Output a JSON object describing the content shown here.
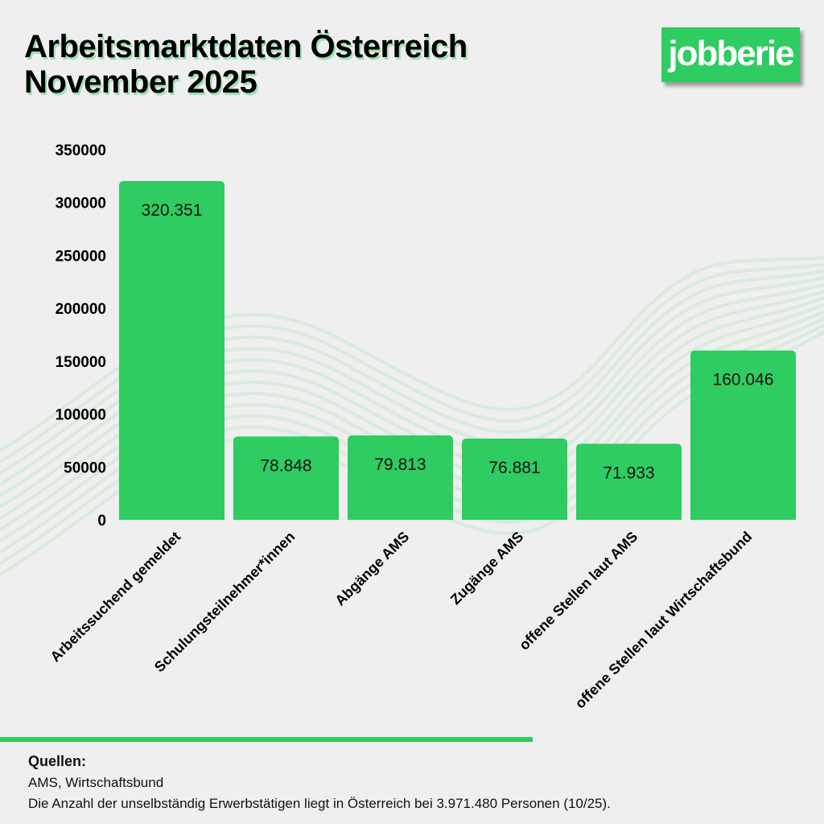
{
  "title_line1": "Arbeitsmarktdaten Österreich",
  "title_line2": "November 2025",
  "logo_text": "jobberie",
  "colors": {
    "bar": "#2ecc61",
    "background": "#efefef",
    "waves": "#cfe9d6"
  },
  "chart_data": {
    "type": "bar",
    "title": "Arbeitsmarktdaten Österreich November 2025",
    "categories": [
      "Arbeitssuchend gemeldet",
      "Schulungsteilnehmer*innen",
      "Abgänge AMS",
      "Zugänge AMS",
      "offene Stellen laut AMS",
      "offene Stellen laut Wirtschaftsbund"
    ],
    "values": [
      320351,
      78848,
      79813,
      76881,
      71933,
      160046
    ],
    "data_labels": [
      "320.351",
      "78.848",
      "79.813",
      "76.881",
      "71.933",
      "160.046"
    ],
    "yticks": [
      0,
      50000,
      100000,
      150000,
      200000,
      250000,
      300000,
      350000
    ],
    "ylim": [
      0,
      350000
    ],
    "xlabel": "",
    "ylabel": "",
    "grid": false,
    "legend": "none"
  },
  "footer": {
    "sources_heading": "Quellen:",
    "sources": "AMS, Wirtschaftsbund",
    "note": "Die Anzahl der unselbständig Erwerbstätigen liegt in Österreich  bei  3.971.480  Personen (10/25)."
  }
}
